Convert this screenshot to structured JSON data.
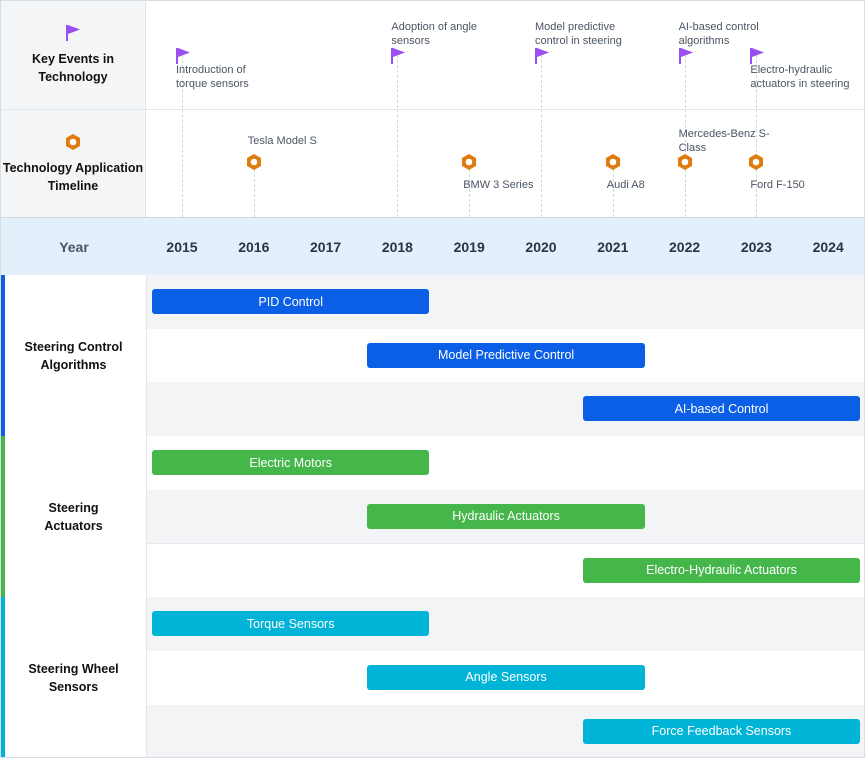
{
  "colors": {
    "event_flag": "#9a4ff0",
    "application_marker": "#e07b10",
    "algorithms": "#0b5fe6",
    "actuators": "#45b64a",
    "sensors": "#00b4d8",
    "year_band": "#e3f0fc"
  },
  "icons": {
    "events": "flag-icon",
    "applications": "hexagon-nut-icon"
  },
  "rows": {
    "events_title": "Key Events in Technology",
    "applications_title": "Technology Application Timeline"
  },
  "year_header": {
    "title": "Year",
    "years": [
      "2015",
      "2016",
      "2017",
      "2018",
      "2019",
      "2020",
      "2021",
      "2022",
      "2023",
      "2024"
    ]
  },
  "events": [
    {
      "year": 2015,
      "label": "Introduction of torque sensors",
      "label_pos": "below"
    },
    {
      "year": 2018,
      "label": "Adoption of angle sensors",
      "label_pos": "above"
    },
    {
      "year": 2020,
      "label": "Model predictive control in steering",
      "label_pos": "above"
    },
    {
      "year": 2022,
      "label": "AI-based control algorithms",
      "label_pos": "above"
    },
    {
      "year": 2023,
      "label": "Electro-hydraulic actuators in steering",
      "label_pos": "below"
    }
  ],
  "applications": [
    {
      "year": 2016,
      "label": "Tesla Model S",
      "label_pos": "above"
    },
    {
      "year": 2019,
      "label": "BMW 3 Series",
      "label_pos": "below"
    },
    {
      "year": 2021,
      "label": "Audi A8",
      "label_pos": "below"
    },
    {
      "year": 2022,
      "label": "Mercedes-Benz S-Class",
      "label_pos": "above"
    },
    {
      "year": 2023,
      "label": "Ford F-150",
      "label_pos": "below"
    }
  ],
  "groups": [
    {
      "name": "Steering Control Algorithms",
      "color_key": "algorithms",
      "tasks": [
        {
          "label": "PID Control",
          "start": 2015,
          "end": 2018
        },
        {
          "label": "Model Predictive Control",
          "start": 2018,
          "end": 2021
        },
        {
          "label": "AI-based Control",
          "start": 2021,
          "end": 2024
        }
      ]
    },
    {
      "name": "Steering Actuators",
      "color_key": "actuators",
      "tasks": [
        {
          "label": "Electric Motors",
          "start": 2015,
          "end": 2018
        },
        {
          "label": "Hydraulic Actuators",
          "start": 2018,
          "end": 2021
        },
        {
          "label": "Electro-Hydraulic Actuators",
          "start": 2021,
          "end": 2024
        }
      ]
    },
    {
      "name": "Steering Wheel Sensors",
      "color_key": "sensors",
      "tasks": [
        {
          "label": "Torque Sensors",
          "start": 2015,
          "end": 2018
        },
        {
          "label": "Angle Sensors",
          "start": 2018,
          "end": 2021
        },
        {
          "label": "Force Feedback Sensors",
          "start": 2021,
          "end": 2024
        }
      ]
    }
  ]
}
